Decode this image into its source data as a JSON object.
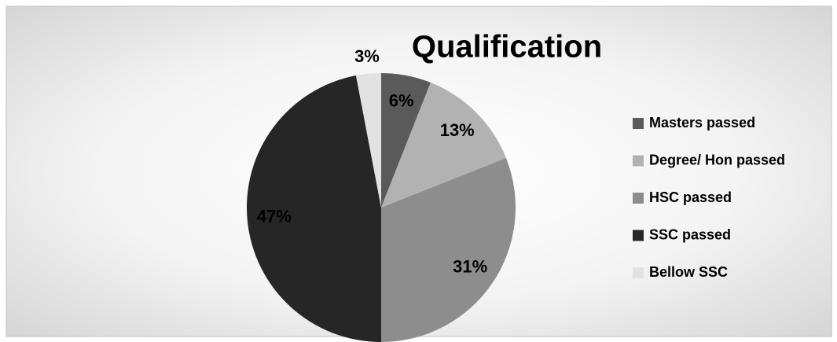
{
  "chart_data": {
    "type": "pie",
    "title": "Qualification",
    "categories": [
      "Masters passed",
      "Degree/ Hon passed",
      "HSC passed",
      "SSC passed",
      "Bellow SSC"
    ],
    "values": [
      6,
      13,
      31,
      47,
      3
    ],
    "value_labels": [
      "6%",
      "13%",
      "31%",
      "47%",
      "3%"
    ],
    "colors": [
      "#5a5a5a",
      "#b2b2b2",
      "#8d8d8d",
      "#262626",
      "#e2e2e2"
    ],
    "legend": "right"
  }
}
